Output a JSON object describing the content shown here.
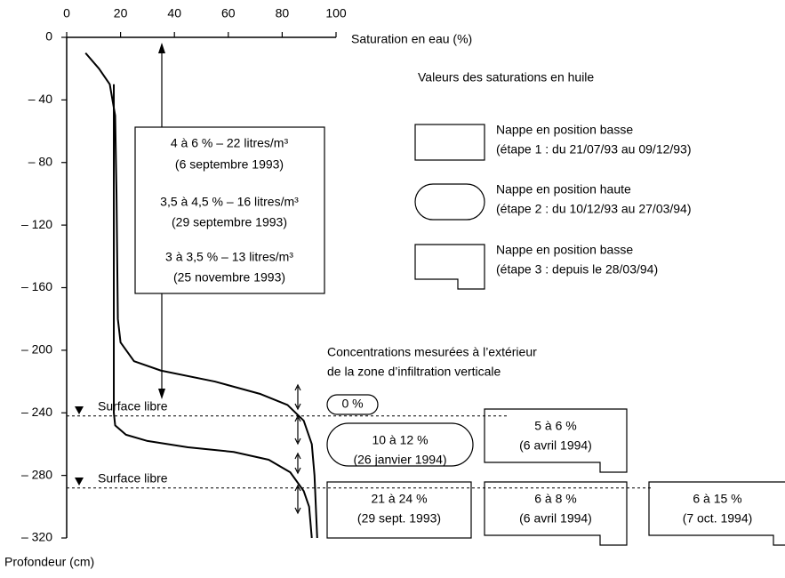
{
  "chart_data": {
    "type": "line",
    "xlabel": "Saturation en eau (%)",
    "ylabel": "Profondeur (cm)",
    "xlim": [
      0,
      100
    ],
    "xticks": [
      0,
      20,
      40,
      60,
      80,
      100
    ],
    "ylim": [
      -320,
      0
    ],
    "yticks": [
      0,
      {
        "value": -40,
        "label": "– 40"
      },
      {
        "value": -80,
        "label": "– 80"
      },
      {
        "value": -120,
        "label": "– 120"
      },
      {
        "value": -160,
        "label": "– 160"
      },
      {
        "value": -200,
        "label": "– 200"
      },
      {
        "value": -240,
        "label": "– 240"
      },
      {
        "value": -280,
        "label": "– 280"
      },
      {
        "value": -320,
        "label": "– 320"
      }
    ],
    "series": [
      {
        "color": "#000000",
        "x": [
          7,
          12,
          16,
          18,
          18.5,
          19,
          20,
          25,
          35,
          55,
          72,
          82,
          88,
          91,
          92,
          93
        ],
        "values": [
          -10,
          -20,
          -30,
          -50,
          -100,
          -180,
          -195,
          -207,
          -213,
          -220,
          -228,
          -235,
          -245,
          -260,
          -280,
          -320
        ]
      },
      {
        "color": "#000000",
        "x": [
          17.5,
          17.5,
          18,
          22,
          30,
          45,
          62,
          75,
          83,
          88,
          90,
          91
        ],
        "values": [
          -30,
          -240,
          -248,
          -254,
          -258,
          -262,
          -265,
          -270,
          -278,
          -290,
          -300,
          -320
        ]
      }
    ],
    "reference_lines": [
      {
        "y": -242,
        "label": "Surface libre"
      },
      {
        "y": -288,
        "label": "Surface libre"
      }
    ],
    "annotations": {
      "main": {
        "lines": [
          "4 à 6 % – 22 litres/m³",
          "(6 septembre 1993)",
          "3,5 à 4,5 % – 16 litres/m³",
          "(29 septembre 1993)",
          "3 à 3,5 % – 13 litres/m³",
          "(25 novembre 1993)"
        ]
      },
      "legend": {
        "title": "Valeurs des saturations en huile",
        "items": [
          {
            "shape": "rect",
            "lines": [
              "Nappe en position basse",
              "(étape 1 : du 21/07/93 au 09/12/93)"
            ]
          },
          {
            "shape": "rounded",
            "lines": [
              "Nappe en position haute",
              "(étape 2 : du 10/12/93 au 27/03/94)"
            ]
          },
          {
            "shape": "notched",
            "lines": [
              "Nappe en position basse",
              "(étape 3 : depuis le 28/03/94)"
            ]
          }
        ]
      },
      "outside": {
        "title": [
          "Concentrations mesurées à l’extérieur",
          "de la zone d’infiltration verticale"
        ],
        "boxes": [
          {
            "shape": "rounded",
            "lines": [
              "0 %"
            ]
          },
          {
            "shape": "rounded",
            "lines": [
              "10 à 12 %",
              "(26 janvier 1994)"
            ]
          },
          {
            "shape": "notched",
            "lines": [
              "5 à 6 %",
              "(6 avril 1994)"
            ]
          },
          {
            "shape": "rect",
            "lines": [
              "21 à 24 %",
              "(29 sept. 1993)"
            ]
          },
          {
            "shape": "notched",
            "lines": [
              "6 à 8 %",
              "(6 avril 1994)"
            ]
          },
          {
            "shape": "notched",
            "lines": [
              "6 à 15 %",
              "(7 oct. 1994)"
            ]
          }
        ]
      }
    }
  }
}
